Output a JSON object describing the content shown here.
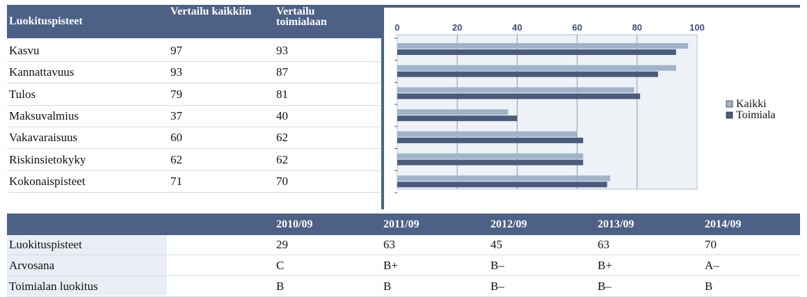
{
  "score_table": {
    "header": [
      "Luokituspisteet",
      "Vertailu kaikkiin",
      "Vertailu toimialaan"
    ],
    "rows": [
      [
        "Kasvu",
        97,
        93
      ],
      [
        "Kannattavuus",
        93,
        87
      ],
      [
        "Tulos",
        79,
        81
      ],
      [
        "Maksuvalmius",
        37,
        40
      ],
      [
        "Vakavaraisuus",
        60,
        62
      ],
      [
        "Riskinsietokyky",
        62,
        62
      ],
      [
        "Kokonaispisteet",
        71,
        70
      ]
    ]
  },
  "chart_data": {
    "type": "bar",
    "orientation": "horizontal",
    "xlim": [
      0,
      100
    ],
    "xticks": [
      0,
      20,
      40,
      60,
      80,
      100
    ],
    "grid": true,
    "legend": "right",
    "series": [
      {
        "name": "Kaikki",
        "color": "#9fb4c9",
        "values": [
          97,
          93,
          79,
          37,
          60,
          62,
          71
        ]
      },
      {
        "name": "Toimiala",
        "color": "#4a5b7e",
        "values": [
          93,
          87,
          81,
          40,
          62,
          62,
          70
        ]
      }
    ]
  },
  "history_table": {
    "header": [
      "2010/09",
      "2011/09",
      "2012/09",
      "2013/09",
      "2014/09"
    ],
    "rows": [
      [
        "Luokituspisteet",
        29,
        63,
        45,
        63,
        70
      ],
      [
        "Arvosana",
        "C",
        "B+",
        "B–",
        "B+",
        "A–"
      ],
      [
        "Toimialan luokitus",
        "B",
        "B",
        "B–",
        "B–",
        "B"
      ]
    ]
  }
}
